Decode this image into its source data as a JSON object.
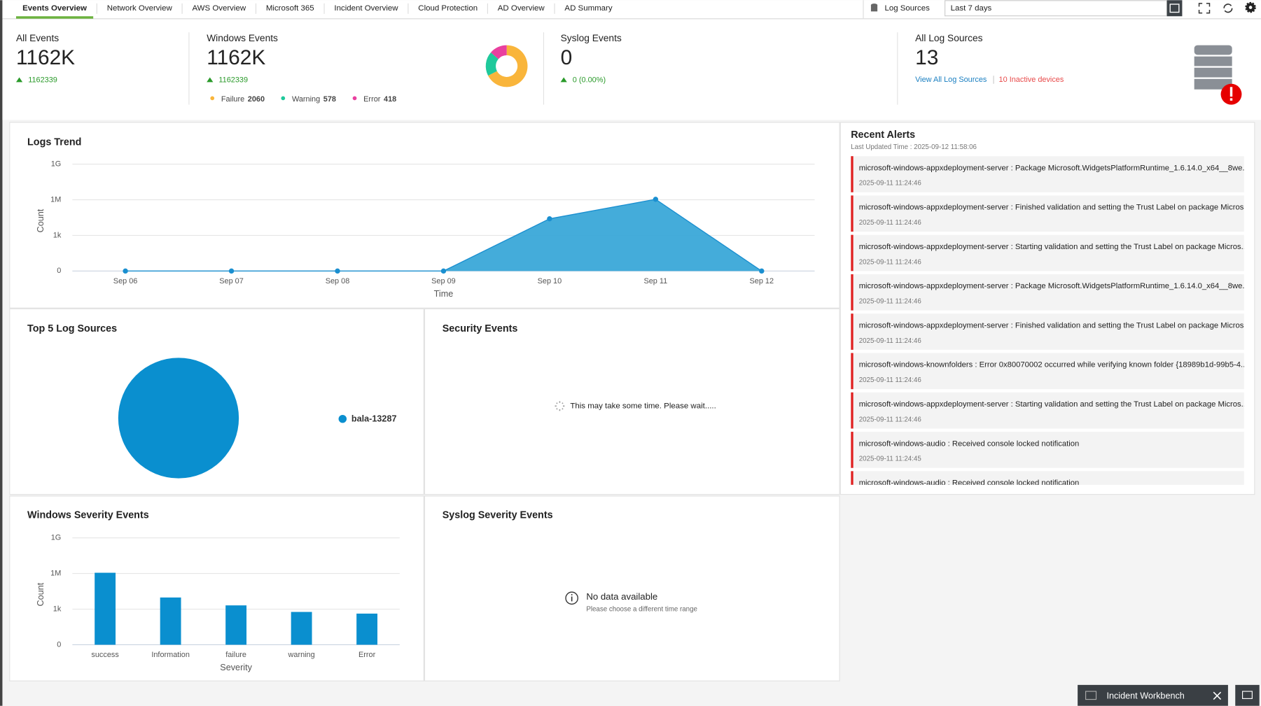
{
  "tabs": [
    "Events Overview",
    "Network Overview",
    "AWS Overview",
    "Microsoft 365",
    "Incident Overview",
    "Cloud Protection",
    "AD Overview",
    "AD Summary"
  ],
  "toolbar": {
    "log_sources": "Log Sources",
    "time_range": "Last 7 days"
  },
  "summary": [
    {
      "title": "All Events",
      "value": "1162K",
      "change": "1162339"
    },
    {
      "title": "Windows Events",
      "value": "1162K",
      "change": "1162339"
    },
    {
      "title": "Syslog Events",
      "value": "0",
      "change": "0 (0.00%)"
    },
    {
      "title": "All Log Sources",
      "value": "13",
      "link": "View All Log Sources",
      "inactive": "10 Inactive devices"
    }
  ],
  "chart_data": [
    {
      "type": "donut",
      "categories": [
        "Failure",
        "Warning",
        "Error"
      ],
      "values": [
        2060,
        578,
        418
      ],
      "colors": [
        "#f9b53b",
        "#1fc99b",
        "#e9409f"
      ]
    },
    {
      "type": "area",
      "title": "Logs Trend",
      "x_label": "Time",
      "y_label": "Count",
      "categories": [
        "Sep 06",
        "Sep 07",
        "Sep 08",
        "Sep 09",
        "Sep 10",
        "Sep 11",
        "Sep 12"
      ],
      "values": [
        0,
        0,
        0,
        0,
        25000,
        1100000,
        0
      ],
      "color": "#3aa8d8",
      "ylim": [
        0,
        1000000000
      ],
      "yscale": "log",
      "yticks": [
        0,
        {
          "value": 1000,
          "label": "1k"
        },
        {
          "value": 1000000,
          "label": "1M"
        },
        {
          "value": 1000000000,
          "label": "1G"
        }
      ],
      "grid": true
    },
    {
      "type": "pie",
      "title": "Top 5 Log Sources",
      "categories": [
        "bala-13287"
      ],
      "values": [
        100
      ],
      "colors": [
        "#0a8fcf"
      ]
    },
    {
      "type": "bar",
      "title": "Windows Severity Events",
      "x_label": "Severity",
      "y_label": "Count",
      "categories": [
        "success",
        "Information",
        "failure",
        "warning",
        "Error"
      ],
      "values": [
        1150000,
        9500,
        2060,
        578,
        418
      ],
      "color": "#0a8fcf",
      "ylim": [
        0,
        1000000000
      ],
      "yscale": "log",
      "yticks": [
        0,
        {
          "value": 1000,
          "label": "1k"
        },
        {
          "value": 1000000,
          "label": "1M"
        },
        {
          "value": 1000000000,
          "label": "1G"
        }
      ],
      "grid": true
    }
  ],
  "security_events": {
    "title": "Security Events",
    "message": "This may take some time. Please wait....."
  },
  "syslog_severity": {
    "title": "Syslog Severity Events",
    "message": "No data available",
    "hint": "Please choose a different time range"
  },
  "recent_alerts": {
    "title": "Recent Alerts",
    "updated": "Last Updated Time : 2025-09-12 11:58:06",
    "items": [
      {
        "message": "microsoft-windows-appxdeployment-server : Package Microsoft.WidgetsPlatformRuntime_1.6.14.0_x64__8we...",
        "time": "2025-09-11 11:24:46"
      },
      {
        "message": "microsoft-windows-appxdeployment-server : Finished validation and setting the Trust Label on package Micros...",
        "time": "2025-09-11 11:24:46"
      },
      {
        "message": "microsoft-windows-appxdeployment-server : Starting validation and setting the Trust Label on package Micros...",
        "time": "2025-09-11 11:24:46"
      },
      {
        "message": "microsoft-windows-appxdeployment-server : Package Microsoft.WidgetsPlatformRuntime_1.6.14.0_x64__8we...",
        "time": "2025-09-11 11:24:46"
      },
      {
        "message": "microsoft-windows-appxdeployment-server : Finished validation and setting the Trust Label on package Micros...",
        "time": "2025-09-11 11:24:46"
      },
      {
        "message": "microsoft-windows-knownfolders : Error 0x80070002 occurred while verifying known folder {18989b1d-99b5-4...",
        "time": "2025-09-11 11:24:46"
      },
      {
        "message": "microsoft-windows-appxdeployment-server : Starting validation and setting the Trust Label on package Micros...",
        "time": "2025-09-11 11:24:46"
      },
      {
        "message": "microsoft-windows-audio : Received console locked notification",
        "time": "2025-09-11 11:24:45"
      },
      {
        "message": "microsoft-windows-audio : Received console locked notification"
      }
    ]
  },
  "footer": {
    "workbench": "Incident Workbench"
  }
}
